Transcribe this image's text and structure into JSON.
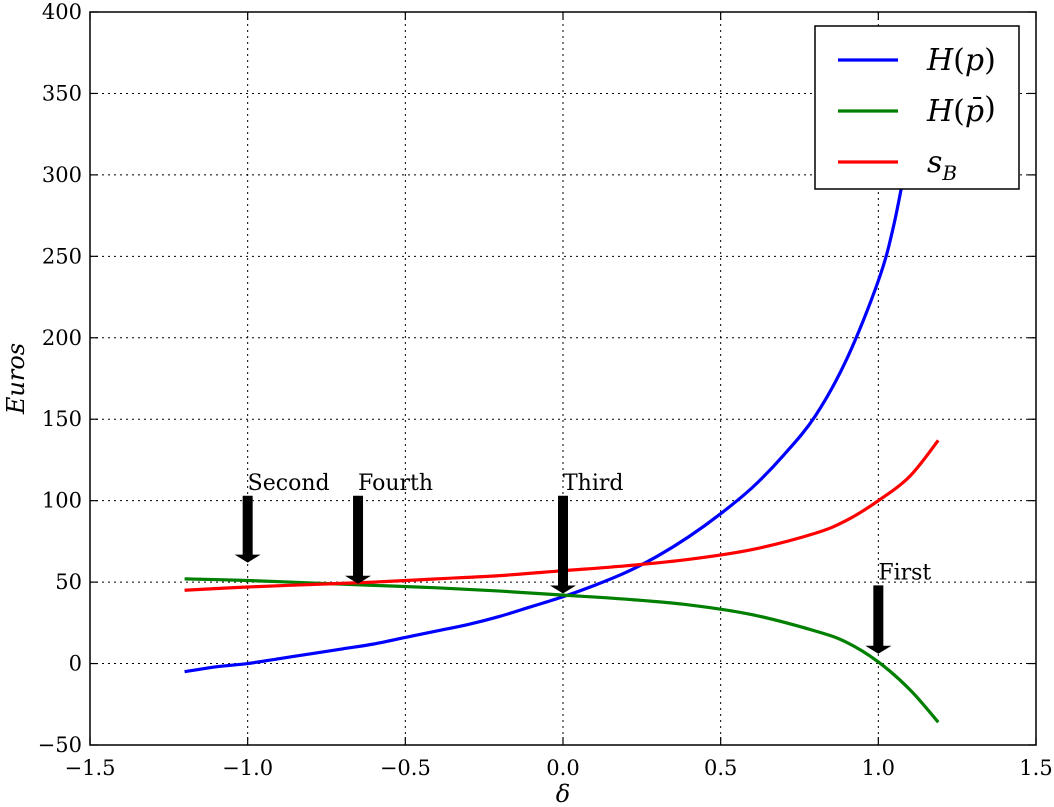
{
  "chart_data": {
    "type": "line",
    "xlabel": "δ",
    "ylabel": "Euros",
    "xlim": [
      -1.5,
      1.5
    ],
    "ylim": [
      -50,
      400
    ],
    "xticks": [
      -1.5,
      -1.0,
      -0.5,
      0.0,
      0.5,
      1.0,
      1.5
    ],
    "xtick_labels": [
      "−1.5",
      "−1.0",
      "−0.5",
      "0.0",
      "0.5",
      "1.0",
      "1.5"
    ],
    "yticks": [
      -50,
      0,
      50,
      100,
      150,
      200,
      250,
      300,
      350,
      400
    ],
    "ytick_labels": [
      "−50",
      "0",
      "50",
      "100",
      "150",
      "200",
      "250",
      "300",
      "350",
      "400"
    ],
    "grid": true,
    "legend_position": "top-right",
    "series": [
      {
        "name": "H(p)",
        "color": "#0000ff",
        "x": [
          -1.2,
          -1.1,
          -1.0,
          -0.9,
          -0.8,
          -0.7,
          -0.6,
          -0.5,
          -0.4,
          -0.3,
          -0.2,
          -0.1,
          0.0,
          0.1,
          0.2,
          0.3,
          0.4,
          0.5,
          0.6,
          0.7,
          0.8,
          0.9,
          1.0,
          1.05,
          1.1
        ],
        "y": [
          -5,
          -2,
          0,
          3,
          6,
          9,
          12,
          16,
          20,
          24,
          29,
          35,
          41,
          48,
          56,
          66,
          78,
          92,
          108,
          128,
          152,
          187,
          235,
          270,
          320
        ]
      },
      {
        "name": "H(p̄)",
        "color": "#007f00",
        "x": [
          -1.2,
          -1.0,
          -0.8,
          -0.6,
          -0.4,
          -0.2,
          0.0,
          0.2,
          0.4,
          0.6,
          0.8,
          0.9,
          1.0,
          1.1,
          1.19
        ],
        "y": [
          52,
          51,
          49.5,
          48,
          46.5,
          44.5,
          42,
          39.5,
          36,
          30,
          20,
          13,
          1,
          -16,
          -36
        ]
      },
      {
        "name": "s_B",
        "color": "#ff0000",
        "x": [
          -1.2,
          -1.0,
          -0.8,
          -0.6,
          -0.4,
          -0.2,
          0.0,
          0.2,
          0.4,
          0.6,
          0.8,
          0.9,
          1.0,
          1.1,
          1.19
        ],
        "y": [
          45,
          47,
          48.5,
          50,
          52,
          54,
          57,
          60,
          64,
          70,
          80,
          88,
          100,
          115,
          137
        ]
      }
    ],
    "legend": [
      {
        "symbol": "H",
        "paren_open": "(",
        "arg": "p",
        "bar": false,
        "paren_close": ")",
        "color": "#0000ff"
      },
      {
        "symbol": "H",
        "paren_open": "(",
        "arg": "p",
        "bar": true,
        "paren_close": ")",
        "color": "#007f00"
      },
      {
        "symbol": "s",
        "sub": "B",
        "color": "#ff0000"
      }
    ],
    "annotations": [
      {
        "text": "Second",
        "x": -1.0,
        "y_top": 103,
        "y_tip": 62
      },
      {
        "text": "Fourth",
        "x": -0.65,
        "y_top": 103,
        "y_tip": 49
      },
      {
        "text": "Third",
        "x": 0.0,
        "y_top": 103,
        "y_tip": 43
      },
      {
        "text": "First",
        "x": 1.0,
        "y_top": 48,
        "y_tip": 6
      }
    ]
  }
}
